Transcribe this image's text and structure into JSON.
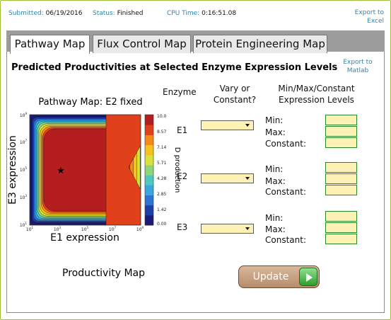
{
  "status": {
    "submitted_label": "Submitted:",
    "submitted_value": "06/19/2016",
    "status_label": "Status:",
    "status_value": "Finished",
    "cpu_label": "CPU Time:",
    "cpu_value": "0:16:51.08",
    "export_excel": "Export to Excel"
  },
  "tabs": [
    {
      "label": "Pathway Map",
      "active": true
    },
    {
      "label": "Flux Control Map",
      "active": false
    },
    {
      "label": "Protein Engineering Map",
      "active": false
    }
  ],
  "main": {
    "heading": "Predicted  Productivities at Selected Enzyme Expression Levels",
    "export_matlab": "Export to Matlab"
  },
  "plot": {
    "title": "Pathway Map: E2 fixed",
    "xlabel": "E1 expression",
    "ylabel": "E3 expression",
    "x_ticks": [
      "10",
      "10",
      "10",
      "10",
      "10"
    ],
    "x_exps": [
      "1",
      "3",
      "5",
      "7",
      "9"
    ],
    "y_ticks": [
      "10",
      "10",
      "10",
      "10",
      "10"
    ],
    "y_exps": [
      "1",
      "3",
      "5",
      "7",
      "9"
    ],
    "colorbar_label": "D production",
    "colorbar_ticks": [
      "10.0",
      "8.57",
      "7.14",
      "5.71",
      "4.28",
      "2.85",
      "1.42",
      "0.00"
    ],
    "marker": "★",
    "colors": [
      "#1a1a78",
      "#1f3fa8",
      "#2d74d4",
      "#39a7e0",
      "#4fc9c0",
      "#8ed67a",
      "#d8e23a",
      "#f6c21e",
      "#f58a1a",
      "#e0401a",
      "#b41e1e"
    ]
  },
  "form": {
    "col_enzyme": "Enzyme",
    "col_vary": "Vary or Constant?",
    "col_levels": "Min/Max/Constant Expression Levels",
    "rows": [
      {
        "enzyme": "E1",
        "min": "Min:",
        "max": "Max:",
        "constant": "Constant:"
      },
      {
        "enzyme": "E2",
        "min": "Min:",
        "max": "Max:",
        "constant": "Constant:"
      },
      {
        "enzyme": "E3",
        "min": "Min:",
        "max": "Max:",
        "constant": "Constant:"
      }
    ]
  },
  "bottom": {
    "productivity_map": "Productivity Map",
    "update": "Update"
  }
}
